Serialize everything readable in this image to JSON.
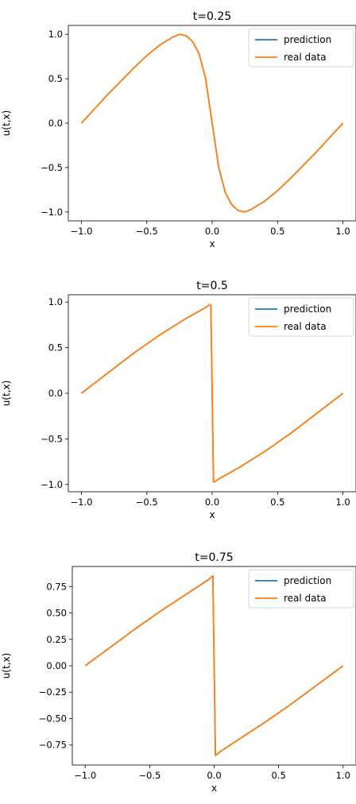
{
  "chart_data": [
    {
      "type": "line",
      "title": "t=0.25",
      "xlabel": "x",
      "ylabel": "u(t,x)",
      "xlim": [
        -1.1,
        1.1
      ],
      "ylim": [
        -1.1,
        1.1
      ],
      "xticks": [
        -1.0,
        -0.5,
        0.0,
        0.5,
        1.0
      ],
      "xtick_labels": [
        "−1.0",
        "−0.5",
        "0.0",
        "0.5",
        "1.0"
      ],
      "yticks": [
        -1.0,
        -0.5,
        0.0,
        0.5,
        1.0
      ],
      "ytick_labels": [
        "−1.0",
        "−0.5",
        "0.0",
        "0.5",
        "1.0"
      ],
      "legend": "top-right",
      "series": [
        {
          "name": "prediction",
          "color": "#1f77b4",
          "x": [
            -1.0,
            -0.9,
            -0.8,
            -0.7,
            -0.6,
            -0.5,
            -0.4,
            -0.3,
            -0.25,
            -0.2,
            -0.15,
            -0.1,
            -0.05,
            0.0,
            0.05,
            0.1,
            0.15,
            0.2,
            0.25,
            0.3,
            0.4,
            0.5,
            0.6,
            0.7,
            0.8,
            0.9,
            1.0
          ],
          "y": [
            0.0,
            0.16,
            0.32,
            0.47,
            0.62,
            0.76,
            0.88,
            0.97,
            1.0,
            0.985,
            0.92,
            0.78,
            0.5,
            0.0,
            -0.5,
            -0.78,
            -0.92,
            -0.985,
            -1.0,
            -0.97,
            -0.88,
            -0.76,
            -0.62,
            -0.47,
            -0.32,
            -0.16,
            0.0
          ]
        },
        {
          "name": "real data",
          "color": "#ff7f0e",
          "x": [
            -1.0,
            -0.9,
            -0.8,
            -0.7,
            -0.6,
            -0.5,
            -0.4,
            -0.3,
            -0.25,
            -0.2,
            -0.15,
            -0.1,
            -0.05,
            0.0,
            0.05,
            0.1,
            0.15,
            0.2,
            0.25,
            0.3,
            0.4,
            0.5,
            0.6,
            0.7,
            0.8,
            0.9,
            1.0
          ],
          "y": [
            0.0,
            0.16,
            0.32,
            0.47,
            0.62,
            0.76,
            0.88,
            0.97,
            1.0,
            0.985,
            0.92,
            0.78,
            0.5,
            0.0,
            -0.5,
            -0.78,
            -0.92,
            -0.985,
            -1.0,
            -0.97,
            -0.88,
            -0.76,
            -0.62,
            -0.47,
            -0.32,
            -0.16,
            0.0
          ]
        }
      ]
    },
    {
      "type": "line",
      "title": "t=0.5",
      "xlabel": "x",
      "ylabel": "u(t,x)",
      "xlim": [
        -1.1,
        1.1
      ],
      "ylim": [
        -1.08,
        1.08
      ],
      "xticks": [
        -1.0,
        -0.5,
        0.0,
        0.5,
        1.0
      ],
      "xtick_labels": [
        "−1.0",
        "−0.5",
        "0.0",
        "0.5",
        "1.0"
      ],
      "yticks": [
        -1.0,
        -0.5,
        0.0,
        0.5,
        1.0
      ],
      "ytick_labels": [
        "−1.0",
        "−0.5",
        "0.0",
        "0.5",
        "1.0"
      ],
      "legend": "top-right",
      "series": [
        {
          "name": "prediction",
          "color": "#1f77b4",
          "x": [
            -1.0,
            -0.8,
            -0.6,
            -0.4,
            -0.2,
            -0.05,
            -0.02,
            -0.01,
            0.0,
            0.01,
            0.02,
            0.05,
            0.2,
            0.4,
            0.6,
            0.8,
            1.0
          ],
          "y": [
            0.0,
            0.22,
            0.44,
            0.64,
            0.82,
            0.94,
            0.97,
            0.97,
            0.0,
            -0.97,
            -0.97,
            -0.94,
            -0.82,
            -0.64,
            -0.44,
            -0.22,
            0.0
          ]
        },
        {
          "name": "real data",
          "color": "#ff7f0e",
          "x": [
            -1.0,
            -0.8,
            -0.6,
            -0.4,
            -0.2,
            -0.05,
            -0.02,
            -0.01,
            0.0,
            0.01,
            0.02,
            0.05,
            0.2,
            0.4,
            0.6,
            0.8,
            1.0
          ],
          "y": [
            0.0,
            0.22,
            0.44,
            0.64,
            0.82,
            0.94,
            0.97,
            0.97,
            0.0,
            -0.97,
            -0.97,
            -0.94,
            -0.82,
            -0.64,
            -0.44,
            -0.22,
            0.0
          ]
        }
      ]
    },
    {
      "type": "line",
      "title": "t=0.75",
      "xlabel": "x",
      "ylabel": "u(t,x)",
      "xlim": [
        -1.1,
        1.1
      ],
      "ylim": [
        -0.94,
        0.94
      ],
      "xticks": [
        -1.0,
        -0.5,
        0.0,
        0.5,
        1.0
      ],
      "xtick_labels": [
        "−1.0",
        "−0.5",
        "0.0",
        "0.5",
        "1.0"
      ],
      "yticks": [
        -0.75,
        -0.5,
        -0.25,
        0.0,
        0.25,
        0.5,
        0.75
      ],
      "ytick_labels": [
        "−0.75",
        "−0.50",
        "−0.25",
        "0.00",
        "0.25",
        "0.50",
        "0.75"
      ],
      "legend": "top-right",
      "series": [
        {
          "name": "prediction",
          "color": "#1f77b4",
          "x": [
            -1.0,
            -0.8,
            -0.6,
            -0.4,
            -0.2,
            -0.05,
            -0.02,
            -0.01,
            0.0,
            0.01,
            0.02,
            0.05,
            0.2,
            0.4,
            0.6,
            0.8,
            1.0
          ],
          "y": [
            0.0,
            0.18,
            0.36,
            0.53,
            0.69,
            0.81,
            0.84,
            0.85,
            0.0,
            -0.85,
            -0.84,
            -0.81,
            -0.69,
            -0.53,
            -0.36,
            -0.18,
            0.0
          ]
        },
        {
          "name": "real data",
          "color": "#ff7f0e",
          "x": [
            -1.0,
            -0.8,
            -0.6,
            -0.4,
            -0.2,
            -0.05,
            -0.02,
            -0.01,
            0.0,
            0.01,
            0.02,
            0.05,
            0.2,
            0.4,
            0.6,
            0.8,
            1.0
          ],
          "y": [
            0.0,
            0.18,
            0.36,
            0.53,
            0.69,
            0.81,
            0.84,
            0.85,
            0.0,
            -0.85,
            -0.84,
            -0.81,
            -0.69,
            -0.53,
            -0.36,
            -0.18,
            0.0
          ]
        }
      ]
    }
  ]
}
